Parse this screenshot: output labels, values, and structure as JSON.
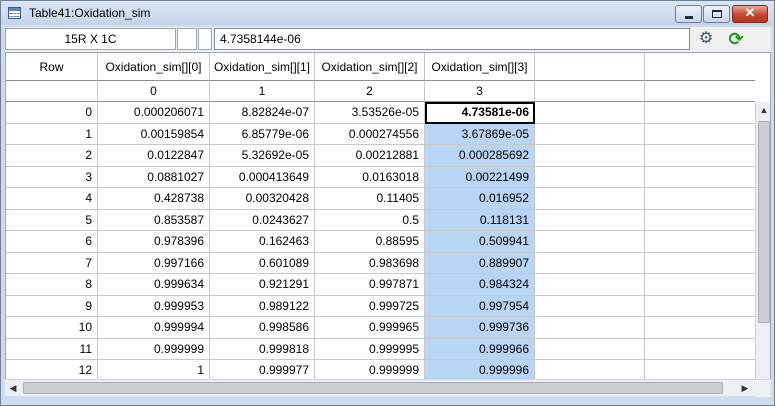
{
  "window": {
    "title": "Table41:Oxidation_sim"
  },
  "window_buttons": {
    "minimize": "▭",
    "maximize": "□",
    "close": "✕"
  },
  "infobar": {
    "dimensions": "15R X 1C",
    "cell_value": "4.7358144e-06"
  },
  "icons": {
    "gear": "⚙",
    "refresh": "⟳",
    "scroll_up": "▲",
    "scroll_down": "▼",
    "scroll_left": "◀",
    "scroll_right": "▶"
  },
  "table": {
    "headers": [
      "Row",
      "Oxidation_sim[][0]",
      "Oxidation_sim[][1]",
      "Oxidation_sim[][2]",
      "Oxidation_sim[][3]",
      "",
      ""
    ],
    "subheaders": [
      "",
      "0",
      "1",
      "2",
      "3",
      "",
      ""
    ],
    "rows": [
      [
        "0",
        "0.000206071",
        "8.82824e-07",
        "3.53526e-05",
        "4.73581e-06"
      ],
      [
        "1",
        "0.00159854",
        "6.85779e-06",
        "0.000274556",
        "3.67869e-05"
      ],
      [
        "2",
        "0.0122847",
        "5.32692e-05",
        "0.00212881",
        "0.000285692"
      ],
      [
        "3",
        "0.0881027",
        "0.000413649",
        "0.0163018",
        "0.00221499"
      ],
      [
        "4",
        "0.428738",
        "0.00320428",
        "0.11405",
        "0.016952"
      ],
      [
        "5",
        "0.853587",
        "0.0243627",
        "0.5",
        "0.118131"
      ],
      [
        "6",
        "0.978396",
        "0.162463",
        "0.88595",
        "0.509941"
      ],
      [
        "7",
        "0.997166",
        "0.601089",
        "0.983698",
        "0.889907"
      ],
      [
        "8",
        "0.999634",
        "0.921291",
        "0.997871",
        "0.984324"
      ],
      [
        "9",
        "0.999953",
        "0.989122",
        "0.999725",
        "0.997954"
      ],
      [
        "10",
        "0.999994",
        "0.998586",
        "0.999965",
        "0.999736"
      ],
      [
        "11",
        "0.999999",
        "0.999818",
        "0.999995",
        "0.999966"
      ],
      [
        "12",
        "1",
        "0.999977",
        "0.999999",
        "0.999996"
      ]
    ]
  }
}
